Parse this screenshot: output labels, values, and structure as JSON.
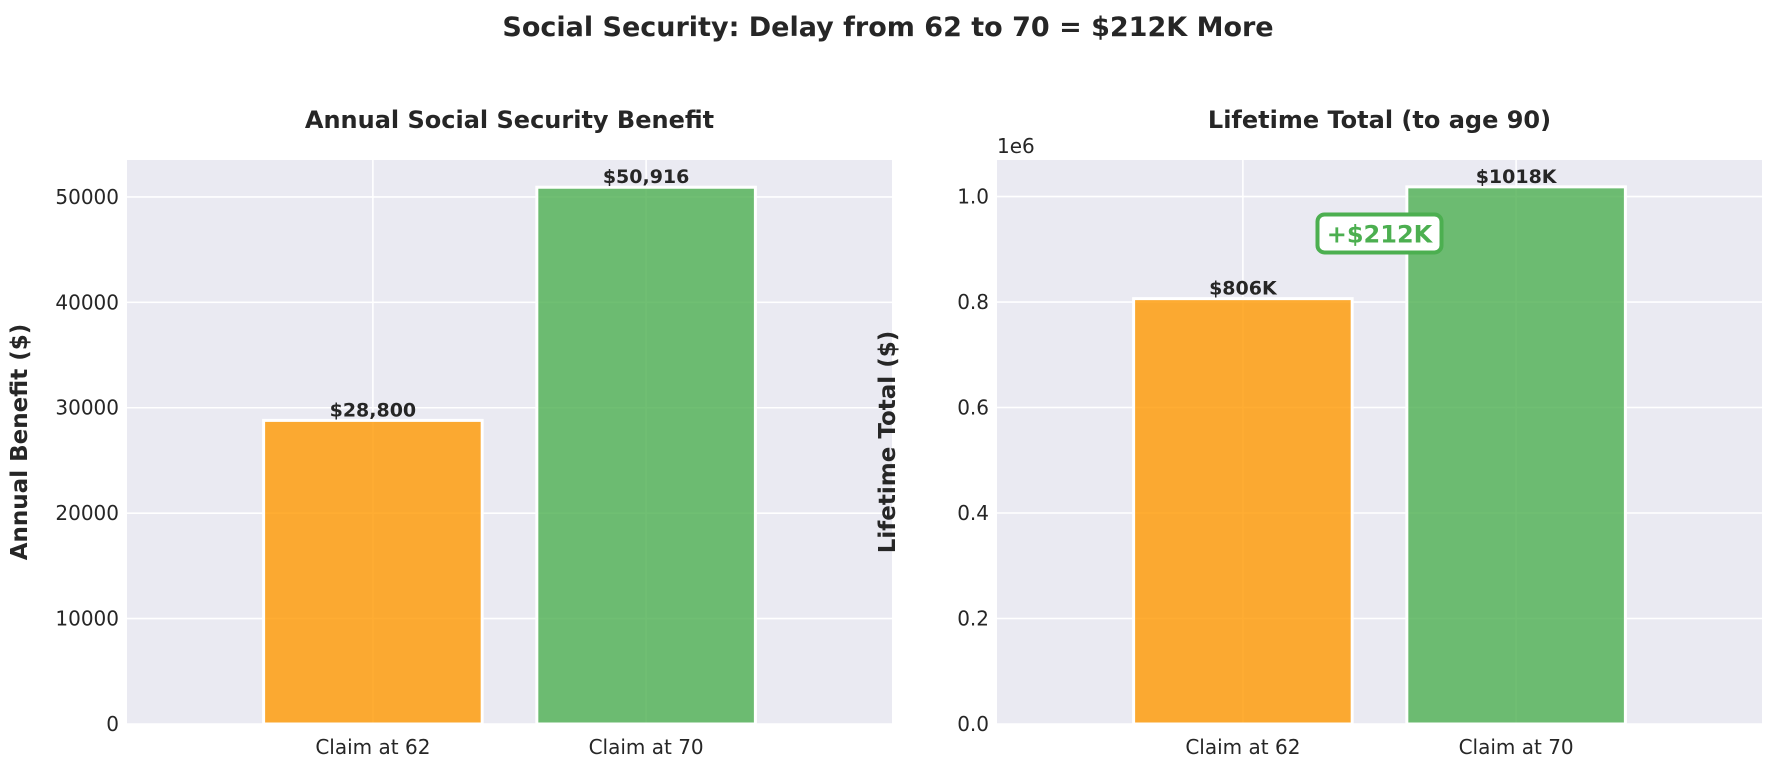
{
  "suptitle": "Social Security: Delay from 62 to 70 = $212K More",
  "chart_data": [
    {
      "type": "bar",
      "title": "Annual Social Security Benefit",
      "xlabel": "",
      "ylabel": "Annual Benefit ($)",
      "categories": [
        "Claim at 62",
        "Claim at 70"
      ],
      "values": [
        28800,
        50916
      ],
      "value_labels": [
        "$28,800",
        "$50,916"
      ],
      "colors": [
        "#ff9800",
        "#4caf50"
      ],
      "ylim": [
        0,
        53500
      ],
      "yticks": [
        0,
        10000,
        20000,
        30000,
        40000,
        50000
      ],
      "ytick_labels": [
        "0",
        "10000",
        "20000",
        "30000",
        "40000",
        "50000"
      ],
      "grid": true
    },
    {
      "type": "bar",
      "title": "Lifetime Total (to age 90)",
      "xlabel": "",
      "ylabel": "Lifetime Total ($)",
      "categories": [
        "Claim at 62",
        "Claim at 70"
      ],
      "values": [
        806400,
        1018320
      ],
      "value_labels": [
        "$806K",
        "$1018K"
      ],
      "colors": [
        "#ff9800",
        "#4caf50"
      ],
      "ylim": [
        0,
        1069236
      ],
      "yticks": [
        0,
        200000,
        400000,
        600000,
        800000,
        1000000
      ],
      "ytick_labels": [
        "0.0",
        "0.2",
        "0.4",
        "0.6",
        "0.8",
        "1.0"
      ],
      "y_offset_text": "1e6",
      "annotation": {
        "text": "+$212K",
        "y": 930000,
        "color": "#4caf50"
      },
      "grid": true
    }
  ]
}
